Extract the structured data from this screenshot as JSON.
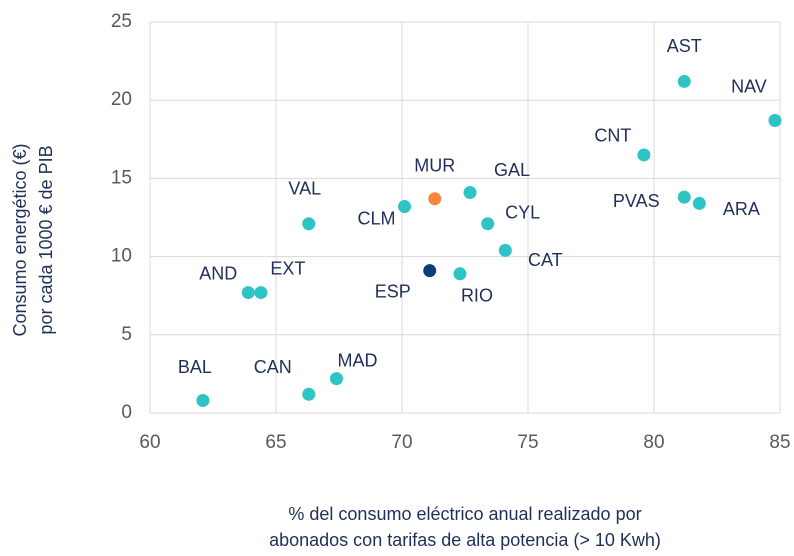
{
  "chart_data": {
    "type": "scatter",
    "x_label": [
      "% del consumo eléctrico anual realizado por",
      "abonados con tarifas de alta potencia (> 10 Kwh)"
    ],
    "y_label": [
      "Consumo energético (€)",
      "por cada 1000 € de PIB"
    ],
    "xlim": [
      60,
      85
    ],
    "xticks": [
      60,
      65,
      70,
      75,
      80,
      85
    ],
    "ylim": [
      0,
      25
    ],
    "yticks": [
      0,
      5,
      10,
      15,
      20,
      25
    ],
    "grid": true,
    "points": [
      {
        "label": "BAL",
        "x": 62.1,
        "y": 0.8,
        "color": "#2ec4c6"
      },
      {
        "label": "CAN",
        "x": 66.3,
        "y": 1.2,
        "color": "#2ec4c6"
      },
      {
        "label": "MAD",
        "x": 67.4,
        "y": 2.2,
        "color": "#2ec4c6"
      },
      {
        "label": "AND",
        "x": 63.9,
        "y": 7.7,
        "color": "#2ec4c6"
      },
      {
        "label": "EXT",
        "x": 64.4,
        "y": 7.7,
        "color": "#2ec4c6"
      },
      {
        "label": "VAL",
        "x": 66.3,
        "y": 12.1,
        "color": "#2ec4c6"
      },
      {
        "label": "CLM",
        "x": 70.1,
        "y": 13.2,
        "color": "#2ec4c6"
      },
      {
        "label": "ESP",
        "x": 71.1,
        "y": 9.1,
        "color": "#0b3d7a"
      },
      {
        "label": "MUR",
        "x": 71.3,
        "y": 13.7,
        "color": "#f4873b"
      },
      {
        "label": "GAL",
        "x": 72.7,
        "y": 14.1,
        "color": "#2ec4c6"
      },
      {
        "label": "CYL",
        "x": 73.4,
        "y": 12.1,
        "color": "#2ec4c6"
      },
      {
        "label": "CAT",
        "x": 74.1,
        "y": 10.4,
        "color": "#2ec4c6"
      },
      {
        "label": "RIO",
        "x": 72.3,
        "y": 8.9,
        "color": "#2ec4c6"
      },
      {
        "label": "CNT",
        "x": 79.6,
        "y": 16.5,
        "color": "#2ec4c6"
      },
      {
        "label": "AST",
        "x": 81.2,
        "y": 21.2,
        "color": "#2ec4c6"
      },
      {
        "label": "NAV",
        "x": 84.8,
        "y": 18.7,
        "color": "#2ec4c6"
      },
      {
        "label": "PVAS",
        "x": 81.2,
        "y": 13.8,
        "color": "#2ec4c6"
      },
      {
        "label": "ARA",
        "x": 81.8,
        "y": 13.4,
        "color": "#2ec4c6"
      }
    ]
  }
}
